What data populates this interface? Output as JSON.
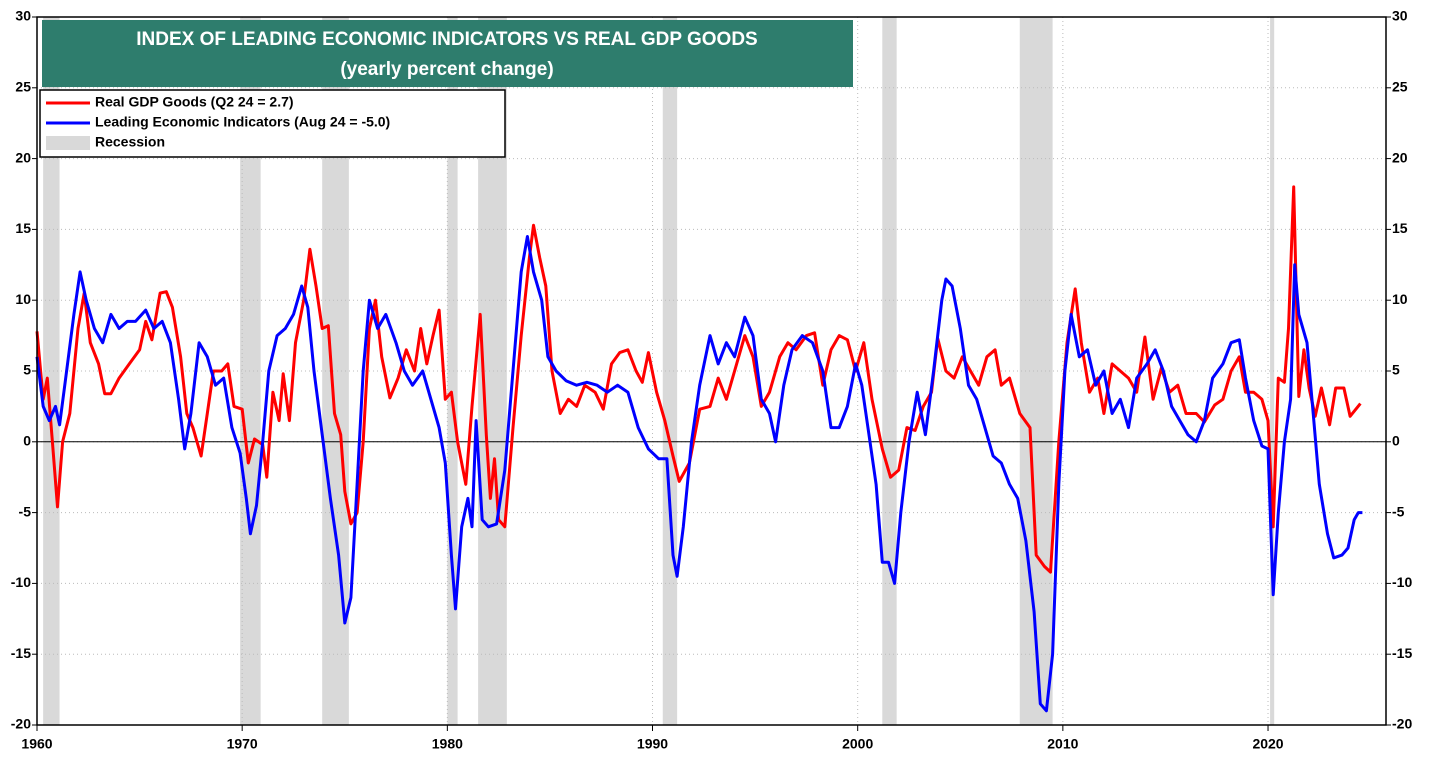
{
  "chart_data": {
    "type": "line",
    "title": "INDEX OF LEADING ECONOMIC INDICATORS VS REAL GDP GOODS",
    "subtitle": "(yearly percent change)",
    "xlim": [
      1960,
      2025.75
    ],
    "xticks": [
      1960,
      1970,
      1980,
      1990,
      2000,
      2010,
      2020
    ],
    "ylim": [
      -20,
      30
    ],
    "yticks": [
      -20,
      -15,
      -10,
      -5,
      0,
      5,
      10,
      15,
      20,
      25,
      30
    ],
    "y2lim": [
      -20,
      30
    ],
    "y2ticks": [
      -20,
      -15,
      -10,
      -5,
      0,
      5,
      10,
      15,
      20,
      25,
      30
    ],
    "grid": true,
    "legend": "top-left",
    "recession": {
      "name": "Recession",
      "color": "#d9d9d9",
      "periods": [
        [
          1960.3,
          1961.1
        ],
        [
          1969.9,
          1970.9
        ],
        [
          1973.9,
          1975.2
        ],
        [
          1980.0,
          1980.5
        ],
        [
          1981.5,
          1982.9
        ],
        [
          1990.5,
          1991.2
        ],
        [
          2001.2,
          2001.9
        ],
        [
          2007.9,
          2009.5
        ],
        [
          2020.1,
          2020.3
        ]
      ]
    },
    "series": [
      {
        "name": "Real GDP Goods (Q2 24 = 2.7)",
        "color": "#ff0000",
        "x": [
          1960.0,
          1960.3,
          1960.5,
          1960.75,
          1961.0,
          1961.25,
          1961.6,
          1962.0,
          1962.3,
          1962.6,
          1963.0,
          1963.3,
          1963.6,
          1964.0,
          1964.5,
          1965.0,
          1965.3,
          1965.6,
          1966.0,
          1966.3,
          1966.6,
          1967.0,
          1967.3,
          1967.6,
          1968.0,
          1968.3,
          1968.6,
          1969.0,
          1969.3,
          1969.6,
          1970.0,
          1970.3,
          1970.6,
          1971.0,
          1971.2,
          1971.5,
          1971.8,
          1972.0,
          1972.3,
          1972.6,
          1973.0,
          1973.3,
          1973.6,
          1973.9,
          1974.2,
          1974.5,
          1974.8,
          1975.0,
          1975.3,
          1975.6,
          1975.9,
          1976.2,
          1976.5,
          1976.8,
          1977.2,
          1977.6,
          1978.0,
          1978.4,
          1978.7,
          1979.0,
          1979.3,
          1979.6,
          1979.9,
          1980.2,
          1980.5,
          1980.9,
          1981.2,
          1981.6,
          1981.9,
          1982.1,
          1982.3,
          1982.5,
          1982.8,
          1983.2,
          1983.6,
          1984.0,
          1984.2,
          1984.5,
          1984.8,
          1985.1,
          1985.5,
          1985.9,
          1986.3,
          1986.7,
          1987.2,
          1987.6,
          1988.0,
          1988.4,
          1988.8,
          1989.2,
          1989.5,
          1989.8,
          1990.2,
          1990.6,
          1991.0,
          1991.3,
          1991.8,
          1992.3,
          1992.8,
          1993.2,
          1993.6,
          1994.0,
          1994.5,
          1994.9,
          1995.3,
          1995.7,
          1996.2,
          1996.6,
          1997.0,
          1997.5,
          1997.9,
          1998.3,
          1998.7,
          1999.1,
          1999.5,
          1999.9,
          2000.3,
          2000.7,
          2001.2,
          2001.6,
          2002.0,
          2002.4,
          2002.8,
          2003.2,
          2003.6,
          2003.9,
          2004.3,
          2004.7,
          2005.1,
          2005.5,
          2005.9,
          2006.3,
          2006.7,
          2007.0,
          2007.4,
          2007.9,
          2008.4,
          2008.7,
          2009.1,
          2009.4,
          2009.8,
          2010.2,
          2010.6,
          2010.9,
          2011.3,
          2011.7,
          2012.0,
          2012.4,
          2012.8,
          2013.2,
          2013.6,
          2014.0,
          2014.4,
          2014.8,
          2015.2,
          2015.6,
          2016.0,
          2016.5,
          2016.9,
          2017.4,
          2017.8,
          2018.2,
          2018.6,
          2018.9,
          2019.3,
          2019.7,
          2020.0,
          2020.25,
          2020.5,
          2020.8,
          2021.0,
          2021.25,
          2021.5,
          2021.75,
          2022.0,
          2022.3,
          2022.6,
          2023.0,
          2023.3,
          2023.7,
          2024.0,
          2024.5
        ],
        "values": [
          7.8,
          3,
          4.5,
          0,
          -4.6,
          0,
          2,
          8,
          10.5,
          7,
          5.5,
          3.4,
          3.4,
          4.5,
          5.5,
          6.5,
          8.5,
          7.2,
          10.5,
          10.6,
          9.5,
          6,
          2,
          1,
          -1,
          2,
          5,
          5,
          5.5,
          2.5,
          2.3,
          -1.5,
          0.2,
          -0.2,
          -2.5,
          3.5,
          1.5,
          4.8,
          1.5,
          7,
          10,
          13.6,
          11,
          8,
          8.2,
          2,
          0.5,
          -3.5,
          -5.8,
          -5,
          0,
          8,
          10,
          6,
          3.1,
          4.5,
          6.5,
          5,
          8,
          5.5,
          7.5,
          9.3,
          3,
          3.5,
          0,
          -3,
          2.5,
          9,
          0.5,
          -4,
          -1.2,
          -5.5,
          -6,
          1,
          7.5,
          13,
          15.3,
          13,
          11,
          5,
          2,
          3,
          2.5,
          4,
          3.5,
          2.3,
          5.5,
          6.3,
          6.5,
          5,
          4.2,
          6.3,
          3.5,
          1.5,
          -1,
          -2.8,
          -1.5,
          2.3,
          2.5,
          4.5,
          3,
          5,
          7.5,
          6,
          2.5,
          3.5,
          6,
          7,
          6.5,
          7.5,
          7.7,
          4,
          6.5,
          7.5,
          7.2,
          5,
          7,
          3,
          -0.5,
          -2.5,
          -2,
          1,
          0.8,
          2.5,
          3.5,
          7.3,
          5,
          4.5,
          6,
          5,
          4,
          6,
          6.5,
          4,
          4.5,
          2,
          1,
          -8,
          -8.8,
          -9.2,
          0,
          7,
          10.8,
          7,
          3.5,
          4.5,
          2,
          5.5,
          5,
          4.5,
          3.5,
          7.4,
          3,
          5.2,
          3.5,
          4,
          2,
          2,
          1.4,
          2.6,
          3,
          5,
          6,
          3.5,
          3.5,
          3,
          1.5,
          -6,
          4.5,
          4.2,
          8,
          18,
          3.2,
          6.5,
          3.8,
          1.8,
          3.8,
          1.2,
          3.8,
          3.8,
          1.8,
          2.7
        ]
      },
      {
        "name": "Leading Economic Indicators (Aug 24 = -5.0)",
        "color": "#0000ff",
        "x": [
          1960.0,
          1960.3,
          1960.6,
          1960.9,
          1961.1,
          1961.4,
          1961.8,
          1962.1,
          1962.4,
          1962.8,
          1963.2,
          1963.6,
          1964.0,
          1964.4,
          1964.8,
          1965.3,
          1965.7,
          1966.1,
          1966.5,
          1966.9,
          1967.2,
          1967.5,
          1967.9,
          1968.3,
          1968.7,
          1969.1,
          1969.5,
          1969.9,
          1970.2,
          1970.4,
          1970.7,
          1971.0,
          1971.3,
          1971.7,
          1972.1,
          1972.5,
          1972.9,
          1973.2,
          1973.5,
          1973.9,
          1974.3,
          1974.7,
          1975.0,
          1975.3,
          1975.6,
          1975.9,
          1976.2,
          1976.6,
          1977.0,
          1977.5,
          1977.9,
          1978.3,
          1978.8,
          1979.2,
          1979.6,
          1979.9,
          1980.2,
          1980.4,
          1980.7,
          1981.0,
          1981.2,
          1981.4,
          1981.7,
          1982.0,
          1982.4,
          1982.8,
          1983.2,
          1983.6,
          1983.9,
          1984.2,
          1984.6,
          1984.9,
          1985.3,
          1985.8,
          1986.3,
          1986.8,
          1987.3,
          1987.8,
          1988.3,
          1988.8,
          1989.3,
          1989.8,
          1990.3,
          1990.7,
          1991.0,
          1991.2,
          1991.5,
          1991.9,
          1992.3,
          1992.8,
          1993.2,
          1993.6,
          1994.0,
          1994.5,
          1994.9,
          1995.3,
          1995.7,
          1996.0,
          1996.4,
          1996.8,
          1997.3,
          1997.8,
          1998.3,
          1998.7,
          1999.1,
          1999.5,
          1999.9,
          2000.2,
          2000.6,
          2000.9,
          2001.2,
          2001.5,
          2001.8,
          2002.1,
          2002.5,
          2002.9,
          2003.3,
          2003.7,
          2004.1,
          2004.3,
          2004.6,
          2005.0,
          2005.4,
          2005.8,
          2006.2,
          2006.6,
          2007.0,
          2007.4,
          2007.8,
          2008.2,
          2008.6,
          2008.9,
          2009.2,
          2009.5,
          2009.8,
          2010.1,
          2010.4,
          2010.8,
          2011.2,
          2011.6,
          2012.0,
          2012.4,
          2012.8,
          2013.2,
          2013.6,
          2014.1,
          2014.5,
          2014.9,
          2015.3,
          2015.7,
          2016.1,
          2016.5,
          2016.9,
          2017.3,
          2017.8,
          2018.2,
          2018.6,
          2018.9,
          2019.3,
          2019.7,
          2020.0,
          2020.25,
          2020.5,
          2020.8,
          2021.1,
          2021.3,
          2021.5,
          2021.9,
          2022.2,
          2022.5,
          2022.9,
          2023.2,
          2023.6,
          2023.9,
          2024.2,
          2024.4,
          2024.6
        ],
        "values": [
          6,
          2.5,
          1.5,
          2.5,
          1.2,
          4.5,
          9,
          12,
          10,
          8,
          7,
          9,
          8,
          8.5,
          8.5,
          9.3,
          8,
          8.5,
          7,
          3,
          -0.5,
          2,
          7,
          6,
          4,
          4.5,
          1,
          -0.8,
          -4,
          -6.5,
          -4.5,
          0,
          5,
          7.5,
          8,
          9,
          11,
          9.5,
          5,
          0.5,
          -4,
          -8,
          -12.8,
          -11,
          -3,
          5,
          10,
          8,
          9,
          7,
          5,
          4,
          5,
          3,
          1,
          -1.5,
          -8,
          -11.8,
          -6,
          -4,
          -6,
          1.5,
          -5.5,
          -6,
          -5.8,
          -2,
          5,
          12,
          14.5,
          12,
          10,
          6,
          5,
          4.3,
          4,
          4.2,
          4,
          3.5,
          4,
          3.5,
          1,
          -0.5,
          -1.2,
          -1.2,
          -8,
          -9.5,
          -6,
          0,
          4,
          7.5,
          5.5,
          7,
          6,
          8.8,
          7.5,
          3,
          2,
          0,
          4,
          6.5,
          7.5,
          7,
          5,
          1,
          1,
          2.5,
          5.5,
          4,
          0,
          -3,
          -8.5,
          -8.5,
          -10,
          -5,
          0,
          3.5,
          0.5,
          5,
          10,
          11.5,
          11,
          8,
          4,
          3,
          1,
          -1,
          -1.5,
          -3,
          -4,
          -7,
          -12,
          -18.5,
          -19,
          -15,
          -3,
          5,
          9,
          6,
          6.5,
          4,
          5,
          2,
          3,
          1,
          4.5,
          5.5,
          6.5,
          5,
          2.5,
          1.5,
          0.5,
          0,
          1.5,
          4.5,
          5.5,
          7,
          7.2,
          4.5,
          1.5,
          -0.3,
          -0.5,
          -10.8,
          -5,
          0,
          3,
          12.5,
          9,
          7,
          2,
          -3,
          -6.5,
          -8.2,
          -8,
          -7.5,
          -5.5,
          -5,
          -5.0
        ]
      }
    ]
  }
}
